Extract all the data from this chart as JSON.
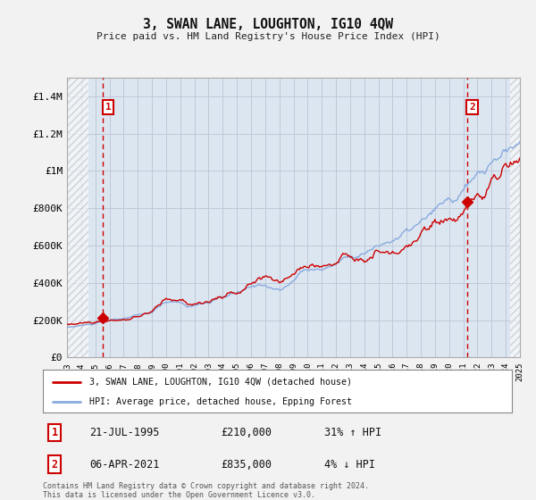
{
  "title": "3, SWAN LANE, LOUGHTON, IG10 4QW",
  "subtitle": "Price paid vs. HM Land Registry's House Price Index (HPI)",
  "ylabel_ticks": [
    "£0",
    "£200K",
    "£400K",
    "£600K",
    "£800K",
    "£1M",
    "£1.2M",
    "£1.4M"
  ],
  "ytick_values": [
    0,
    200000,
    400000,
    600000,
    800000,
    1000000,
    1200000,
    1400000
  ],
  "ylim": [
    0,
    1500000
  ],
  "xmin_year": 1993,
  "xmax_year": 2025,
  "xtick_years": [
    1993,
    1994,
    1995,
    1996,
    1997,
    1998,
    1999,
    2000,
    2001,
    2002,
    2003,
    2004,
    2005,
    2006,
    2007,
    2008,
    2009,
    2010,
    2011,
    2012,
    2013,
    2014,
    2015,
    2016,
    2017,
    2018,
    2019,
    2020,
    2021,
    2022,
    2023,
    2024,
    2025
  ],
  "sale1_date_num": 1995.55,
  "sale1_price": 210000,
  "sale1_label": "1",
  "sale2_date_num": 2021.26,
  "sale2_price": 835000,
  "sale2_label": "2",
  "red_line_color": "#cc0000",
  "blue_line_color": "#88aadd",
  "marker_color": "#cc0000",
  "vline_color": "#cc0000",
  "grid_color": "#c0c8d8",
  "bg_color": "#dce6f1",
  "outer_bg": "#f2f2f2",
  "legend_label_red": "3, SWAN LANE, LOUGHTON, IG10 4QW (detached house)",
  "legend_label_blue": "HPI: Average price, detached house, Epping Forest",
  "box1_num": "1",
  "box2_num": "2",
  "ann1_date": "21-JUL-1995",
  "ann1_price": "£210,000",
  "ann1_hpi": "31% ↑ HPI",
  "ann2_date": "06-APR-2021",
  "ann2_price": "£835,000",
  "ann2_hpi": "4% ↓ HPI",
  "footer": "Contains HM Land Registry data © Crown copyright and database right 2024.\nThis data is licensed under the Open Government Licence v3.0.",
  "hatch_left_end": 1994.5,
  "hatch_right_start": 2024.3,
  "noise_seed": 42
}
